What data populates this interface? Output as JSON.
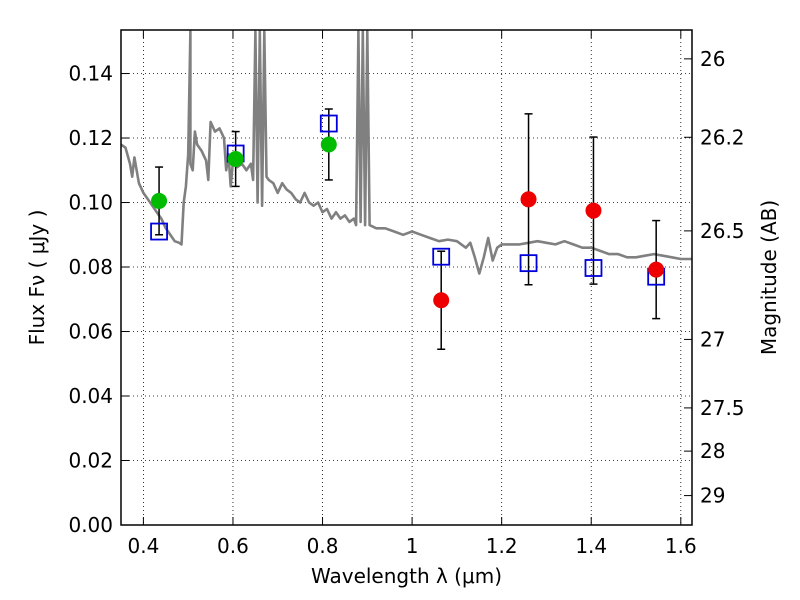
{
  "chart_data": {
    "type": "scatter",
    "xlabel": "Wavelength  λ (μm)",
    "ylabel": "Flux  Fν  ( μJy )",
    "y2label": "Magnitude (AB)",
    "xlim": [
      0.35,
      1.625
    ],
    "ylim": [
      0.0,
      0.1535
    ],
    "grid": true,
    "x_ticks": [
      0.4,
      0.6,
      0.8,
      1.0,
      1.2,
      1.4,
      1.6
    ],
    "x_tick_labels": [
      "0.4",
      "0.6",
      "0.8",
      "1",
      "1.2",
      "1.4",
      "1.6"
    ],
    "y_ticks": [
      0.0,
      0.02,
      0.04,
      0.06,
      0.08,
      0.1,
      0.12,
      0.14
    ],
    "y_tick_labels": [
      "0.00",
      "0.02",
      "0.04",
      "0.06",
      "0.08",
      "0.10",
      "0.12",
      "0.14"
    ],
    "mag_ticks": [
      26,
      26.2,
      26.5,
      27,
      27.5,
      28,
      29
    ],
    "mag_tick_labels": [
      "26",
      "26.2",
      "26.5",
      "27",
      "27.5",
      "28",
      "29"
    ],
    "observed_green": {
      "color": "#00bb00",
      "points": [
        {
          "x": 0.435,
          "y": 0.1005,
          "err": 0.0105
        },
        {
          "x": 0.606,
          "y": 0.1135,
          "err": 0.0085
        },
        {
          "x": 0.814,
          "y": 0.118,
          "err": 0.011
        }
      ]
    },
    "observed_red": {
      "color": "#ee0000",
      "points": [
        {
          "x": 1.065,
          "y": 0.0697,
          "err": 0.0152
        },
        {
          "x": 1.26,
          "y": 0.101,
          "err": 0.0265
        },
        {
          "x": 1.405,
          "y": 0.0975,
          "err": 0.0228
        },
        {
          "x": 1.545,
          "y": 0.0792,
          "err": 0.0152
        }
      ]
    },
    "model_squares": {
      "color": "#0000dd",
      "points": [
        {
          "x": 0.435,
          "y": 0.091
        },
        {
          "x": 0.606,
          "y": 0.1152
        },
        {
          "x": 0.814,
          "y": 0.1245
        },
        {
          "x": 1.065,
          "y": 0.0832
        },
        {
          "x": 1.26,
          "y": 0.0812
        },
        {
          "x": 1.405,
          "y": 0.0797
        },
        {
          "x": 1.545,
          "y": 0.077
        }
      ]
    },
    "sed_model": {
      "color": "#808080",
      "points": [
        [
          0.35,
          0.118
        ],
        [
          0.36,
          0.117
        ],
        [
          0.37,
          0.112
        ],
        [
          0.375,
          0.108
        ],
        [
          0.38,
          0.114
        ],
        [
          0.39,
          0.106
        ],
        [
          0.4,
          0.103
        ],
        [
          0.41,
          0.101
        ],
        [
          0.42,
          0.099
        ],
        [
          0.43,
          0.097
        ],
        [
          0.44,
          0.095
        ],
        [
          0.45,
          0.092
        ],
        [
          0.46,
          0.09
        ],
        [
          0.47,
          0.088
        ],
        [
          0.48,
          0.0875
        ],
        [
          0.485,
          0.087
        ],
        [
          0.49,
          0.1
        ],
        [
          0.495,
          0.105
        ],
        [
          0.5,
          0.115
        ],
        [
          0.505,
          0.153
        ],
        [
          0.505,
          0.112
        ],
        [
          0.51,
          0.11
        ],
        [
          0.515,
          0.122
        ],
        [
          0.52,
          0.118
        ],
        [
          0.53,
          0.116
        ],
        [
          0.54,
          0.113
        ],
        [
          0.545,
          0.107
        ],
        [
          0.55,
          0.125
        ],
        [
          0.56,
          0.122
        ],
        [
          0.57,
          0.123
        ],
        [
          0.58,
          0.12
        ],
        [
          0.585,
          0.11
        ],
        [
          0.59,
          0.115
        ],
        [
          0.595,
          0.105
        ],
        [
          0.6,
          0.113
        ],
        [
          0.605,
          0.112
        ],
        [
          0.61,
          0.111
        ],
        [
          0.62,
          0.112
        ],
        [
          0.63,
          0.11
        ],
        [
          0.64,
          0.112
        ],
        [
          0.645,
          0.107
        ],
        [
          0.65,
          0.153
        ],
        [
          0.655,
          0.1
        ],
        [
          0.66,
          0.153
        ],
        [
          0.665,
          0.099
        ],
        [
          0.67,
          0.153
        ],
        [
          0.675,
          0.108
        ],
        [
          0.68,
          0.107
        ],
        [
          0.69,
          0.106
        ],
        [
          0.7,
          0.103
        ],
        [
          0.71,
          0.106
        ],
        [
          0.72,
          0.104
        ],
        [
          0.73,
          0.103
        ],
        [
          0.74,
          0.101
        ],
        [
          0.75,
          0.1
        ],
        [
          0.76,
          0.103
        ],
        [
          0.77,
          0.1
        ],
        [
          0.78,
          0.099
        ],
        [
          0.79,
          0.1
        ],
        [
          0.8,
          0.097
        ],
        [
          0.81,
          0.098
        ],
        [
          0.82,
          0.095
        ],
        [
          0.83,
          0.097
        ],
        [
          0.84,
          0.095
        ],
        [
          0.85,
          0.096
        ],
        [
          0.86,
          0.094
        ],
        [
          0.87,
          0.095
        ],
        [
          0.875,
          0.093
        ],
        [
          0.88,
          0.153
        ],
        [
          0.885,
          0.094
        ],
        [
          0.89,
          0.153
        ],
        [
          0.895,
          0.093
        ],
        [
          0.9,
          0.153
        ],
        [
          0.905,
          0.093
        ],
        [
          0.92,
          0.092
        ],
        [
          0.94,
          0.092
        ],
        [
          0.96,
          0.091
        ],
        [
          0.98,
          0.09
        ],
        [
          1.0,
          0.091
        ],
        [
          1.02,
          0.09
        ],
        [
          1.04,
          0.089
        ],
        [
          1.06,
          0.088
        ],
        [
          1.08,
          0.0885
        ],
        [
          1.1,
          0.088
        ],
        [
          1.12,
          0.086
        ],
        [
          1.13,
          0.0875
        ],
        [
          1.14,
          0.083
        ],
        [
          1.15,
          0.078
        ],
        [
          1.16,
          0.083
        ],
        [
          1.17,
          0.089
        ],
        [
          1.18,
          0.082
        ],
        [
          1.19,
          0.086
        ],
        [
          1.2,
          0.087
        ],
        [
          1.22,
          0.087
        ],
        [
          1.24,
          0.087
        ],
        [
          1.26,
          0.0875
        ],
        [
          1.28,
          0.088
        ],
        [
          1.3,
          0.0875
        ],
        [
          1.32,
          0.087
        ],
        [
          1.34,
          0.088
        ],
        [
          1.36,
          0.087
        ],
        [
          1.38,
          0.086
        ],
        [
          1.4,
          0.086
        ],
        [
          1.42,
          0.085
        ],
        [
          1.44,
          0.084
        ],
        [
          1.46,
          0.084
        ],
        [
          1.48,
          0.083
        ],
        [
          1.5,
          0.083
        ],
        [
          1.52,
          0.0835
        ],
        [
          1.54,
          0.084
        ],
        [
          1.56,
          0.0835
        ],
        [
          1.58,
          0.083
        ],
        [
          1.6,
          0.0825
        ],
        [
          1.625,
          0.0825
        ]
      ]
    }
  }
}
